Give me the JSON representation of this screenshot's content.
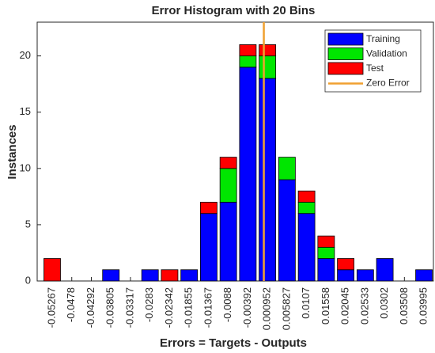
{
  "chart_data": {
    "type": "bar",
    "title": "Error Histogram with 20 Bins",
    "x_label": "Errors = Targets - Outputs",
    "y_label": "Instances",
    "categories": [
      "-0.05267",
      "-0.0478",
      "-0.04292",
      "-0.03805",
      "-0.03317",
      "-0.0283",
      "-0.02342",
      "-0.01855",
      "-0.01367",
      "-0.0088",
      "-0.00392",
      "0.000952",
      "0.005827",
      "0.0107",
      "0.01558",
      "0.02045",
      "0.02533",
      "0.0302",
      "0.03508",
      "0.03995"
    ],
    "series": [
      {
        "name": "Training",
        "color": "#0000ff",
        "values": [
          0,
          0,
          0,
          1,
          0,
          1,
          0,
          1,
          6,
          7,
          19,
          18,
          9,
          6,
          2,
          1,
          1,
          2,
          0,
          1
        ]
      },
      {
        "name": "Validation",
        "color": "#00e600",
        "values": [
          0,
          0,
          0,
          0,
          0,
          0,
          0,
          0,
          0,
          3,
          1,
          2,
          2,
          1,
          1,
          0,
          0,
          0,
          0,
          0
        ]
      },
      {
        "name": "Test",
        "color": "#ff0000",
        "values": [
          2,
          0,
          0,
          0,
          0,
          0,
          1,
          0,
          1,
          1,
          1,
          1,
          0,
          1,
          1,
          1,
          0,
          0,
          0,
          0
        ]
      }
    ],
    "zero_line": {
      "name": "Zero Error",
      "color": "#f0a030",
      "value": 0
    },
    "stacked": true,
    "ylim": [
      0,
      23
    ],
    "yticks": [
      0,
      5,
      10,
      15,
      20
    ],
    "legend": "top-right"
  }
}
